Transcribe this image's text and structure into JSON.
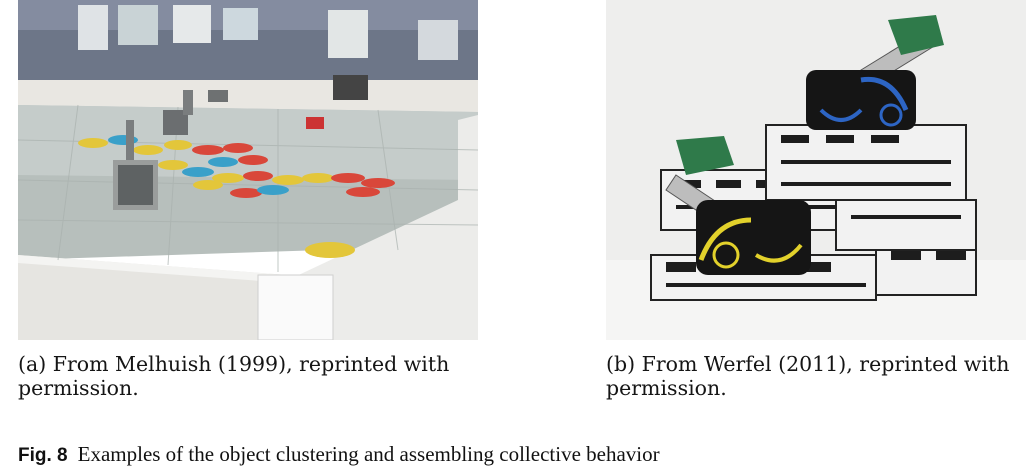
{
  "panels": [
    {
      "caption_line1": "(a) From Melhuish (1999), reprinted with",
      "caption_line2": "permission."
    },
    {
      "caption_line1": "(b) From Werfel (2011), reprinted with",
      "caption_line2": "permission."
    }
  ],
  "figure": {
    "number": "Fig. 8",
    "caption": "Examples of the object clustering and assembling collective behavior"
  },
  "colors": {
    "arena_floor": "#b9c1bf",
    "frisbee_red": "#d9473a",
    "frisbee_yellow": "#e3c63a",
    "frisbee_blue": "#3aa0c9",
    "tile_white": "#f2f2f2",
    "robot_black": "#1a1a1a",
    "pad_green": "#2f7a4a"
  }
}
